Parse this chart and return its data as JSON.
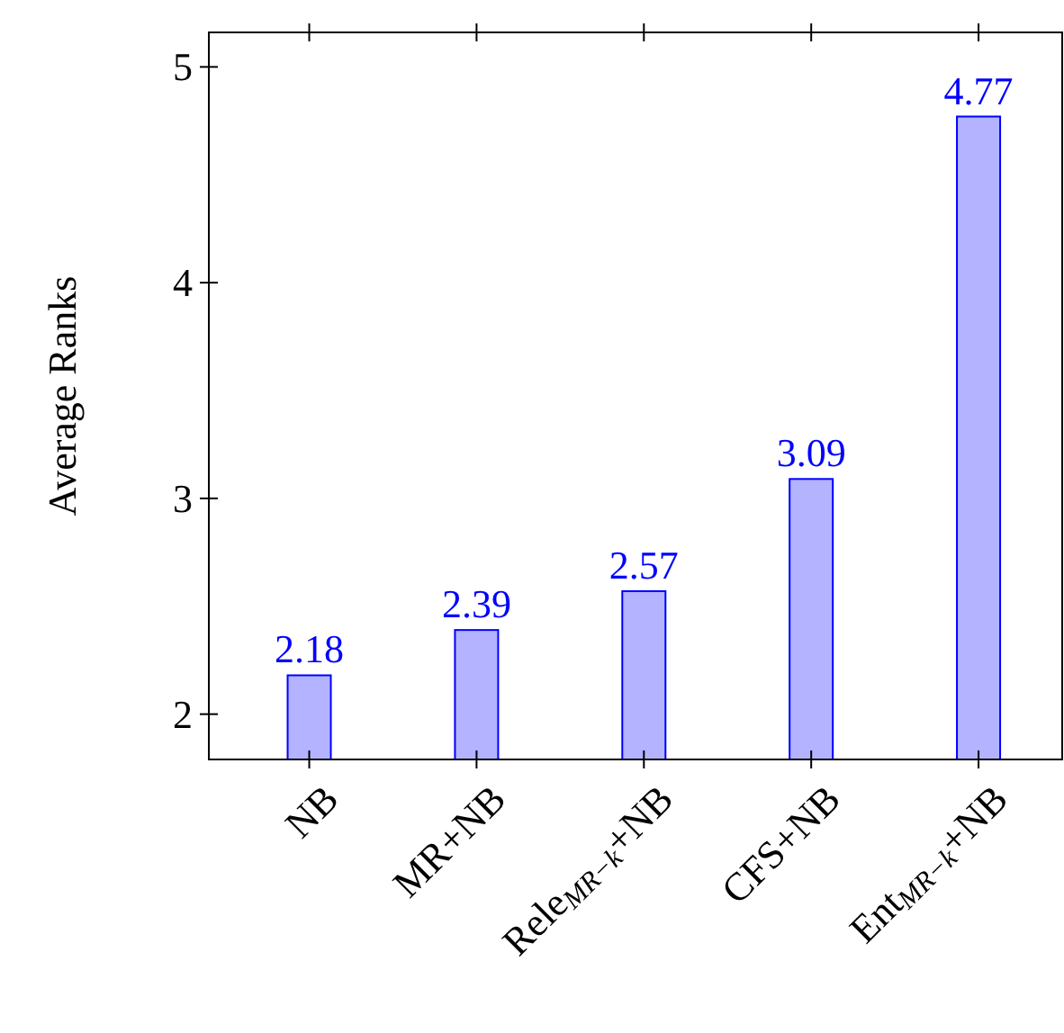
{
  "chart_data": {
    "type": "bar",
    "ylabel": "Average Ranks",
    "categories": [
      "NB",
      "MR+NB",
      "Rele$_{MR−k}$+NB",
      "CFS+NB",
      "Ent$_{MR−k}$+NB"
    ],
    "values": [
      2.18,
      2.39,
      2.57,
      3.09,
      4.77
    ],
    "color": "#b3b3ff",
    "data_labels": true,
    "ylim": [
      1.79,
      5.16
    ],
    "yticks": [
      2,
      3,
      4,
      5
    ],
    "grid": false
  }
}
